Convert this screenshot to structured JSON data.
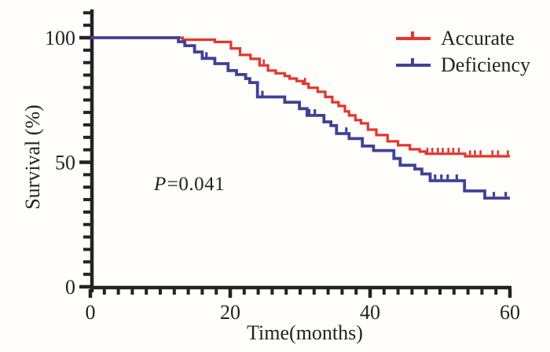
{
  "chart_data": {
    "type": "line",
    "subtype": "kaplan-meier-step",
    "title": "",
    "xlabel": "Time(months)",
    "ylabel": "Survival (%)",
    "xlim": [
      0,
      60
    ],
    "ylim": [
      0,
      100
    ],
    "grid": false,
    "legend_position": "top-right",
    "axis_color": "#262122",
    "background_color": "#fffefb",
    "annotation": {
      "p": "P",
      "value": "=0.041"
    },
    "x_axis": {
      "max": 60,
      "major": [
        {
          "v": 0,
          "label": "0"
        },
        {
          "v": 20,
          "label": "20"
        },
        {
          "v": 40,
          "label": "40"
        },
        {
          "v": 60,
          "label": "60"
        }
      ],
      "minor": [
        2,
        4,
        6,
        8,
        10,
        12,
        14,
        16,
        18,
        22,
        24,
        26,
        28,
        30,
        32,
        34,
        36,
        38,
        42,
        44,
        46,
        48,
        50,
        52,
        54,
        56,
        58
      ]
    },
    "y_axis": {
      "major": [
        {
          "v": 0,
          "label": "0"
        },
        {
          "v": 50,
          "label": "50"
        },
        {
          "v": 100,
          "label": "100"
        }
      ],
      "minor": [
        5,
        10,
        15,
        20,
        25,
        30,
        35,
        40,
        45,
        55,
        60,
        65,
        70,
        75,
        80,
        85,
        90,
        95,
        105,
        110
      ]
    },
    "series": [
      {
        "name": "Accurate",
        "color": "#e5352c",
        "width": 3.2,
        "start": 100,
        "draw_from": 5.7,
        "drops": [
          [
            13.2,
            99.2
          ],
          [
            17.8,
            98.3
          ],
          [
            20.1,
            95.7
          ],
          [
            21.4,
            93.1
          ],
          [
            22.9,
            91.5
          ],
          [
            24.2,
            88.9
          ],
          [
            25.4,
            86.8
          ],
          [
            26.5,
            85.7
          ],
          [
            27.8,
            84.6
          ],
          [
            28.5,
            83.6
          ],
          [
            29.5,
            82.6
          ],
          [
            30.4,
            81.5
          ],
          [
            31.2,
            79.9
          ],
          [
            32.5,
            78.3
          ],
          [
            33.6,
            76.2
          ],
          [
            34.6,
            74.1
          ],
          [
            35.5,
            72.6
          ],
          [
            36.4,
            70.4
          ],
          [
            37.0,
            68.8
          ],
          [
            37.9,
            66.9
          ],
          [
            38.7,
            65.6
          ],
          [
            39.7,
            63.1
          ],
          [
            40.9,
            60.9
          ],
          [
            42.5,
            58.4
          ],
          [
            44.0,
            56.8
          ],
          [
            45.7,
            55.2
          ],
          [
            47.1,
            54.3
          ],
          [
            48.0,
            53.4
          ],
          [
            53.6,
            52.4
          ]
        ],
        "censors": [
          24.8,
          30.7,
          48.2,
          48.9,
          49.7,
          50.4,
          51.2,
          51.9,
          52.7,
          54.3,
          55.0,
          55.8,
          57.5,
          58.3,
          59.7
        ]
      },
      {
        "name": "Deficiency",
        "color": "#3f4197",
        "width": 3.8,
        "start": 100,
        "draw_from": 0,
        "drops": [
          [
            12.6,
            98.4
          ],
          [
            13.5,
            96.8
          ],
          [
            14.9,
            94.3
          ],
          [
            16.0,
            91.7
          ],
          [
            17.8,
            89.6
          ],
          [
            19.7,
            86.8
          ],
          [
            20.9,
            85.2
          ],
          [
            22.2,
            83.6
          ],
          [
            22.8,
            82.0
          ],
          [
            23.9,
            76.2
          ],
          [
            27.8,
            74.1
          ],
          [
            29.9,
            71.5
          ],
          [
            31.0,
            68.8
          ],
          [
            33.4,
            66.2
          ],
          [
            34.4,
            64.7
          ],
          [
            35.2,
            61.5
          ],
          [
            37.0,
            59.5
          ],
          [
            38.9,
            56.5
          ],
          [
            40.5,
            54.7
          ],
          [
            43.4,
            51.5
          ],
          [
            44.3,
            48.8
          ],
          [
            46.4,
            47.3
          ],
          [
            47.4,
            45.3
          ],
          [
            48.6,
            42.6
          ],
          [
            53.5,
            38.5
          ],
          [
            56.4,
            35.6
          ]
        ],
        "censors": [
          16.6,
          24.6,
          31.3,
          32.1,
          36.6,
          49.3,
          50.2,
          51.1,
          52.4,
          57.7,
          59.4
        ]
      }
    ]
  }
}
